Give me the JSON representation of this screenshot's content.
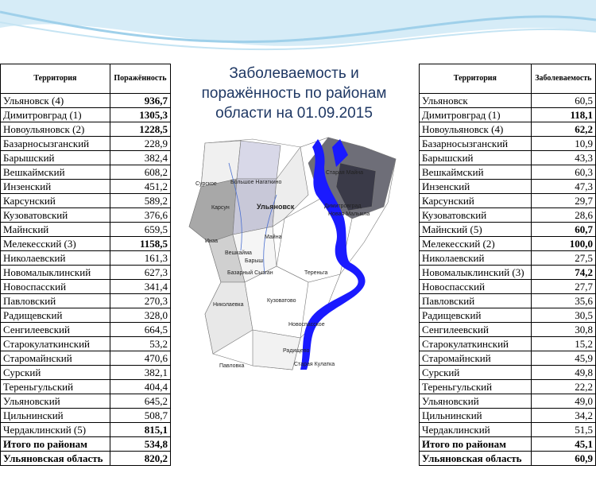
{
  "title": "Заболеваемость и поражённость по районам области на 01.09.2015",
  "left_table": {
    "header": [
      "Территория",
      "Поражённость"
    ],
    "rows": [
      {
        "territory": "Ульяновск  (4)",
        "value": "936,7",
        "bold": true
      },
      {
        "territory": "Димитровград  (1)",
        "value": "1305,3",
        "bold": true
      },
      {
        "territory": "Новоульяновск (2)",
        "value": "1228,5",
        "bold": true
      },
      {
        "territory": "Базарносызганский",
        "value": "228,9"
      },
      {
        "territory": "Барышский",
        "value": "382,4"
      },
      {
        "territory": "Вешкаймский",
        "value": "608,2"
      },
      {
        "territory": "Инзенский",
        "value": "451,2"
      },
      {
        "territory": "Карсунский",
        "value": "589,2"
      },
      {
        "territory": "Кузоватовский",
        "value": "376,6"
      },
      {
        "territory": "Майнский",
        "value": "659,5"
      },
      {
        "territory": "Мелекесский  (3)",
        "value": "1158,5",
        "bold": true
      },
      {
        "territory": "Николаевский",
        "value": "161,3"
      },
      {
        "territory": "Новомалыклинский",
        "value": "627,3"
      },
      {
        "territory": "Новоспасский",
        "value": "341,4"
      },
      {
        "territory": "Павловский",
        "value": "270,3"
      },
      {
        "territory": "Радищевский",
        "value": "328,0"
      },
      {
        "territory": "Сенгилеевский",
        "value": "664,5"
      },
      {
        "territory": "Старокулаткинский",
        "value": "53,2"
      },
      {
        "territory": "Старомайнский",
        "value": "470,6"
      },
      {
        "territory": "Сурский",
        "value": "382,1"
      },
      {
        "territory": "Тереньгульский",
        "value": "404,4"
      },
      {
        "territory": "Ульяновский",
        "value": "645,2"
      },
      {
        "territory": "Цильнинский",
        "value": "508,7"
      },
      {
        "territory": "Чердаклинский (5)",
        "value": "815,1",
        "bold": true
      },
      {
        "territory": "Итого по районам",
        "value": "534,8",
        "bold": true
      },
      {
        "territory": "Ульяновская область",
        "value": "820,2",
        "bold": true
      }
    ]
  },
  "right_table": {
    "header": [
      "Территория",
      "Заболеваемость"
    ],
    "rows": [
      {
        "territory": "Ульяновск",
        "value": "60,5"
      },
      {
        "territory": "Димитровград (1)",
        "value": "118,1",
        "bold": true
      },
      {
        "territory": "Новоульяновск (4)",
        "value": "62,2",
        "bold": true
      },
      {
        "territory": "Базарносызганский",
        "value": "10,9"
      },
      {
        "territory": "Барышский",
        "value": "43,3"
      },
      {
        "territory": "Вешкаймский",
        "value": "60,3"
      },
      {
        "territory": "Инзенский",
        "value": "47,3"
      },
      {
        "territory": "Карсунский",
        "value": "29,7"
      },
      {
        "territory": "Кузоватовский",
        "value": "28,6"
      },
      {
        "territory": "Майнский (5)",
        "value": "60,7",
        "bold": true
      },
      {
        "territory": "Мелекесский (2)",
        "value": "100,0",
        "bold": true
      },
      {
        "territory": "Николаевский",
        "value": "27,5"
      },
      {
        "territory": "Новомалыклинский (3)",
        "value": "74,2",
        "bold": true
      },
      {
        "territory": "Новоспасский",
        "value": "27,7"
      },
      {
        "territory": "Павловский",
        "value": "35,6"
      },
      {
        "territory": "Радищевский",
        "value": "30,5"
      },
      {
        "territory": "Сенгилеевский",
        "value": "30,8"
      },
      {
        "territory": "Старокулаткинский",
        "value": "15,2"
      },
      {
        "territory": "Старомайнский",
        "value": "45,9"
      },
      {
        "territory": "Сурский",
        "value": "49,8"
      },
      {
        "territory": "Тереньгульский",
        "value": "22,2"
      },
      {
        "territory": "Ульяновский",
        "value": "49,0"
      },
      {
        "territory": "Цильнинский",
        "value": "34,2"
      },
      {
        "territory": "Чердаклинский",
        "value": "51,5"
      },
      {
        "territory": "Итого по районам",
        "value": "45,1",
        "bold": true
      },
      {
        "territory": "Ульяновская область",
        "value": "60,9",
        "bold": true
      }
    ]
  },
  "map": {
    "labels": [
      "Сурское",
      "Большое Нагаткино",
      "Карсун",
      "Ульяновск",
      "Майна",
      "Вешкайма",
      "Инза",
      "Базарный Сызган",
      "Барыш",
      "Кузоватово",
      "Николаевка",
      "Новоспасское",
      "Павловка",
      "Радищево",
      "Старая Кулатка",
      "Старая Майна",
      "Димитровград",
      "Новая Малыкла",
      "Тереньга"
    ]
  }
}
